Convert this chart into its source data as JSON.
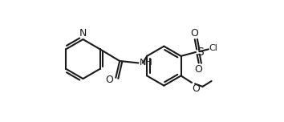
{
  "bg_color": "#ffffff",
  "line_color": "#1a1a1a",
  "line_width": 1.5,
  "font_size": 8,
  "atoms": {
    "N_label": "N",
    "O_carbonyl": "O",
    "NH_label": "NH",
    "S_label": "S",
    "Cl_label": "Cl",
    "O_sulfonyl_top": "O",
    "O_sulfonyl_bot": "O",
    "O_ether": "O"
  },
  "figsize": [
    3.54,
    1.52
  ],
  "dpi": 100
}
